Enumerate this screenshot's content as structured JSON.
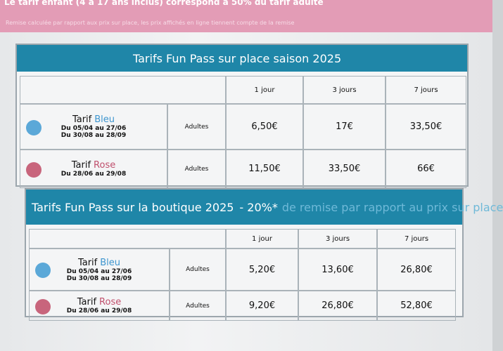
{
  "notice": {
    "line1": "Le tarif enfant (4 à 17 ans inclus) correspond à 50% du tarif adulte",
    "line2": "Remise calculée par rapport aux prix sur place, les prix affichés en ligne tiennent compte de la remise"
  },
  "tables": [
    {
      "title": "Tarifs Fun Pass sur place saison 2025",
      "columns": [
        "1 jour",
        "3 jours",
        "7 jours"
      ],
      "rows": [
        {
          "label": "Tarif",
          "color_name": "Bleu",
          "dates": [
            "Du 05/04 au 27/06",
            "Du 30/08 au 28/09"
          ],
          "audience": "Adultes",
          "prices": [
            "6,50€",
            "17€",
            "33,50€"
          ]
        },
        {
          "label": "Tarif",
          "color_name": "Rose",
          "dates": [
            "Du 28/06 au 29/08"
          ],
          "audience": "Adultes",
          "prices": [
            "11,50€",
            "33,50€",
            "66€"
          ]
        }
      ]
    },
    {
      "title": "Tarifs Fun Pass sur la boutique 2025",
      "discount": "- 20%*",
      "discount_note": "de remise par rapport au prix sur place",
      "columns": [
        "1 jour",
        "3 jours",
        "7 jours"
      ],
      "rows": [
        {
          "label": "Tarif",
          "color_name": "Bleu",
          "dates": [
            "Du 05/04 au 27/06",
            "Du 30/08 au 28/09"
          ],
          "audience": "Adultes",
          "prices": [
            "5,20€",
            "13,60€",
            "26,80€"
          ]
        },
        {
          "label": "Tarif",
          "color_name": "Rose",
          "dates": [
            "Du 28/06 au 29/08"
          ],
          "audience": "Adultes",
          "prices": [
            "9,20€",
            "26,80€",
            "52,80€"
          ]
        }
      ]
    }
  ]
}
